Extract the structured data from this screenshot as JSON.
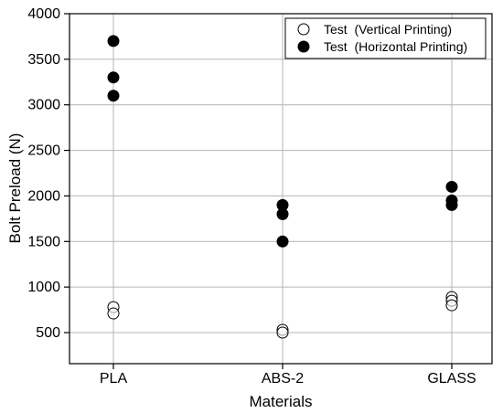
{
  "chart_data": {
    "type": "scatter",
    "xlabel": "Materials",
    "ylabel": "Bolt Preload (N)",
    "categories": [
      "PLA",
      "ABS-2",
      "GLASS"
    ],
    "ylim": [
      0,
      4000
    ],
    "y_ticks": [
      500,
      1000,
      1500,
      2000,
      2500,
      3000,
      3500,
      4000
    ],
    "y_tick_labels": [
      "500",
      "1000",
      "1500",
      "2000",
      "2500",
      "3000",
      "3500",
      "4000"
    ],
    "grid": true,
    "legend_position": "top-right",
    "series": [
      {
        "name": "Test  (Vertical Printing)",
        "marker": "open-circle",
        "color": "#000000",
        "points": [
          {
            "x": "PLA",
            "y": 780
          },
          {
            "x": "PLA",
            "y": 710
          },
          {
            "x": "ABS-2",
            "y": 530
          },
          {
            "x": "ABS-2",
            "y": 500
          },
          {
            "x": "GLASS",
            "y": 890
          },
          {
            "x": "GLASS",
            "y": 850
          },
          {
            "x": "GLASS",
            "y": 800
          }
        ]
      },
      {
        "name": "Test  (Horizontal Printing)",
        "marker": "filled-circle",
        "color": "#000000",
        "points": [
          {
            "x": "PLA",
            "y": 3700
          },
          {
            "x": "PLA",
            "y": 3300
          },
          {
            "x": "PLA",
            "y": 3100
          },
          {
            "x": "ABS-2",
            "y": 1900
          },
          {
            "x": "ABS-2",
            "y": 1800
          },
          {
            "x": "ABS-2",
            "y": 1500
          },
          {
            "x": "GLASS",
            "y": 2100
          },
          {
            "x": "GLASS",
            "y": 1950
          },
          {
            "x": "GLASS",
            "y": 1900
          }
        ]
      }
    ]
  }
}
